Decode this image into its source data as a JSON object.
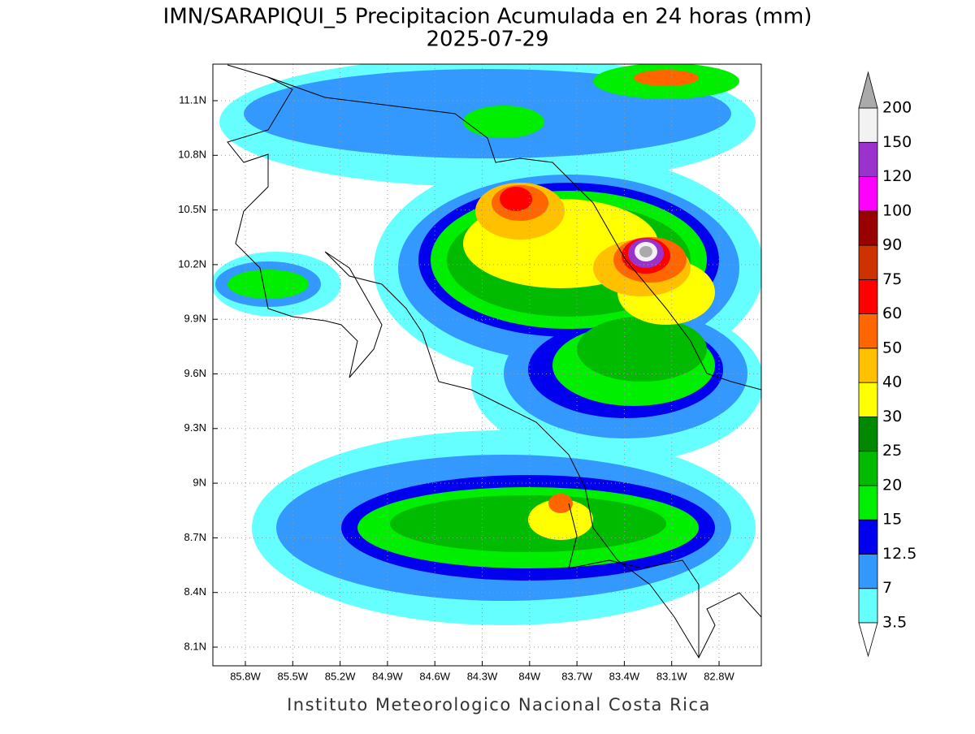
{
  "title": "IMN/SARAPIQUI_5 Precipitacion Acumulada en 24 horas (mm)",
  "subtitle": "2025-07-29",
  "map": {
    "lon_ticks": [
      "85.8W",
      "85.5W",
      "85.2W",
      "84.9W",
      "84.6W",
      "84.3W",
      "84W",
      "83.7W",
      "83.4W",
      "83.1W",
      "82.8W"
    ],
    "lat_ticks": [
      "11.1N",
      "10.8N",
      "10.5N",
      "10.2N",
      "9.9N",
      "9.6N",
      "9.3N",
      "9N",
      "8.7N",
      "8.4N",
      "8.1N"
    ]
  },
  "colorbar": {
    "levels": [
      3.5,
      7,
      12.5,
      15,
      20,
      25,
      30,
      40,
      50,
      60,
      75,
      90,
      100,
      120,
      150,
      200
    ],
    "colors": [
      "#66ffff",
      "#3399ff",
      "#0000ee",
      "#00ee00",
      "#00bb00",
      "#008800",
      "#ffff00",
      "#ffc000",
      "#ff6600",
      "#ff0000",
      "#cc3300",
      "#990000",
      "#ff00ff",
      "#9933cc",
      "#f2f2f2"
    ],
    "under_color": "#ffffff",
    "over_color": "#aaaaaa"
  },
  "footer": "Instituto Meteorologico Nacional Costa Rica"
}
